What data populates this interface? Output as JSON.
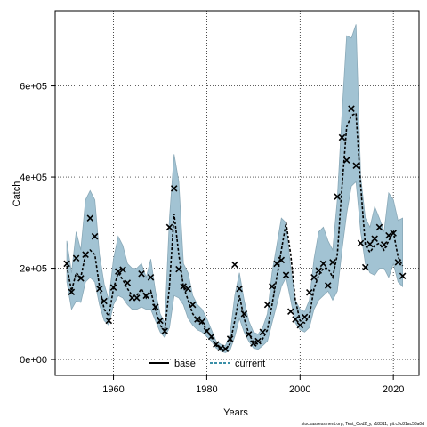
{
  "chart_data": {
    "type": "line",
    "xlabel": "Years",
    "ylabel": "Catch",
    "xlim": [
      1947.5,
      2025.5
    ],
    "ylim": [
      -35000,
      765000
    ],
    "x_ticks": [
      1960,
      1980,
      2000,
      2020
    ],
    "x_tick_labels": [
      "1960",
      "1980",
      "2000",
      "2020"
    ],
    "y_ticks": [
      0,
      200000,
      400000,
      600000
    ],
    "y_tick_labels": [
      "0e+00",
      "2e+05",
      "4e+05",
      "6e+05"
    ],
    "grid": true,
    "legend": {
      "placement": "bottom-center",
      "entries": [
        {
          "label": "base",
          "style": "solid",
          "color": "#000000"
        },
        {
          "label": "current",
          "style": "dashed",
          "color": "#3a8fa8"
        }
      ]
    },
    "footnote": "stockassessment.org, Test_Cod2_y, r18311, git:c9c81ac53a0d",
    "colors": {
      "band": "#a2c3d3",
      "band_edge": "#8aa9b8",
      "line": "#000000",
      "line_dash": "#3a8fa8"
    },
    "band": {
      "x": [
        1950,
        1951,
        1952,
        1953,
        1954,
        1955,
        1956,
        1957,
        1958,
        1959,
        1960,
        1961,
        1962,
        1963,
        1964,
        1965,
        1966,
        1967,
        1968,
        1969,
        1970,
        1971,
        1972,
        1973,
        1974,
        1975,
        1976,
        1977,
        1978,
        1979,
        1980,
        1981,
        1982,
        1983,
        1984,
        1985,
        1986,
        1987,
        1988,
        1989,
        1990,
        1991,
        1992,
        1993,
        1994,
        1995,
        1996,
        1997,
        1998,
        1999,
        2000,
        2001,
        2002,
        2003,
        2004,
        2005,
        2006,
        2007,
        2008,
        2009,
        2010,
        2011,
        2012,
        2013,
        2014,
        2015,
        2016,
        2017,
        2018,
        2019,
        2020,
        2021,
        2022
      ],
      "lower": [
        170000,
        110000,
        128000,
        125000,
        170000,
        180000,
        170000,
        120000,
        85000,
        75000,
        120000,
        140000,
        135000,
        120000,
        110000,
        110000,
        115000,
        110000,
        110000,
        85000,
        60000,
        48000,
        70000,
        140000,
        135000,
        120000,
        90000,
        75000,
        65000,
        60000,
        50000,
        40000,
        25000,
        18000,
        15000,
        20000,
        50000,
        90000,
        60000,
        40000,
        25000,
        22000,
        30000,
        40000,
        80000,
        120000,
        160000,
        180000,
        130000,
        80000,
        65000,
        60000,
        70000,
        110000,
        130000,
        140000,
        150000,
        130000,
        150000,
        240000,
        320000,
        380000,
        390000,
        280000,
        210000,
        190000,
        185000,
        200000,
        200000,
        180000,
        210000,
        170000,
        160000
      ],
      "upper": [
        260000,
        190000,
        280000,
        240000,
        350000,
        370000,
        350000,
        230000,
        165000,
        130000,
        220000,
        270000,
        250000,
        210000,
        200000,
        200000,
        210000,
        180000,
        220000,
        150000,
        100000,
        80000,
        310000,
        450000,
        390000,
        210000,
        190000,
        140000,
        120000,
        110000,
        90000,
        65000,
        40000,
        33000,
        30000,
        55000,
        140000,
        190000,
        130000,
        85000,
        60000,
        55000,
        70000,
        100000,
        190000,
        250000,
        310000,
        300000,
        200000,
        130000,
        110000,
        105000,
        130000,
        220000,
        280000,
        290000,
        260000,
        240000,
        350000,
        540000,
        710000,
        705000,
        735000,
        400000,
        310000,
        290000,
        335000,
        310000,
        280000,
        365000,
        350000,
        305000,
        310000
      ]
    },
    "series": [
      {
        "name": "current",
        "x": [
          1950,
          1951,
          1952,
          1953,
          1954,
          1955,
          1956,
          1957,
          1958,
          1959,
          1960,
          1961,
          1962,
          1963,
          1964,
          1965,
          1966,
          1967,
          1968,
          1969,
          1970,
          1971,
          1972,
          1973,
          1974,
          1975,
          1976,
          1977,
          1978,
          1979,
          1980,
          1981,
          1982,
          1983,
          1984,
          1985,
          1986,
          1987,
          1988,
          1989,
          1990,
          1991,
          1992,
          1993,
          1994,
          1995,
          1996,
          1997,
          1998,
          1999,
          2000,
          2001,
          2002,
          2003,
          2004,
          2005,
          2006,
          2007,
          2008,
          2009,
          2010,
          2011,
          2012,
          2013,
          2014,
          2015,
          2016,
          2017,
          2018,
          2019,
          2020,
          2021,
          2022
        ],
        "values": [
          205000,
          150000,
          190000,
          180000,
          230000,
          240000,
          230000,
          160000,
          110000,
          95000,
          155000,
          190000,
          175000,
          155000,
          140000,
          140000,
          155000,
          135000,
          150000,
          110000,
          75000,
          62000,
          160000,
          320000,
          230000,
          160000,
          130000,
          100000,
          85000,
          80000,
          65000,
          48000,
          30000,
          23000,
          20000,
          35000,
          85000,
          140000,
          90000,
          57000,
          37000,
          33000,
          45000,
          65000,
          120000,
          180000,
          240000,
          300000,
          230000,
          130000,
          85000,
          80000,
          95000,
          155000,
          185000,
          200000,
          200000,
          180000,
          230000,
          380000,
          510000,
          535000,
          540000,
          380000,
          250000,
          235000,
          250000,
          255000,
          240000,
          260000,
          280000,
          225000,
          205000
        ]
      },
      {
        "name": "observed",
        "x": [
          1950,
          1951,
          1952,
          1953,
          1954,
          1955,
          1956,
          1957,
          1958,
          1959,
          1960,
          1961,
          1962,
          1963,
          1964,
          1965,
          1966,
          1967,
          1968,
          1969,
          1970,
          1971,
          1972,
          1973,
          1974,
          1975,
          1976,
          1977,
          1978,
          1979,
          1980,
          1981,
          1982,
          1983,
          1984,
          1985,
          1986,
          1987,
          1988,
          1989,
          1990,
          1991,
          1992,
          1993,
          1994,
          1995,
          1996,
          1997,
          1998,
          1999,
          2000,
          2001,
          2002,
          2003,
          2004,
          2005,
          2006,
          2007,
          2008,
          2009,
          2010,
          2011,
          2012,
          2013,
          2014,
          2015,
          2016,
          2017,
          2018,
          2019,
          2020,
          2021,
          2022
        ],
        "values": [
          210000,
          148000,
          222000,
          178000,
          230000,
          310000,
          270000,
          155000,
          128000,
          85000,
          158000,
          193000,
          197000,
          168000,
          135000,
          135000,
          188000,
          140000,
          180000,
          115000,
          85000,
          62000,
          290000,
          375000,
          198000,
          160000,
          155000,
          120000,
          88000,
          83000,
          62000,
          50000,
          33000,
          25000,
          23000,
          45000,
          208000,
          155000,
          100000,
          55000,
          35000,
          40000,
          60000,
          120000,
          160000,
          210000,
          218000,
          185000,
          105000,
          88000,
          75000,
          93000,
          147000,
          180000,
          195000,
          210000,
          162000,
          213000,
          357000,
          487000,
          437000,
          550000,
          425000,
          255000,
          202000,
          253000,
          265000,
          290000,
          252000,
          272000,
          277000,
          213000,
          183000
        ]
      }
    ]
  }
}
